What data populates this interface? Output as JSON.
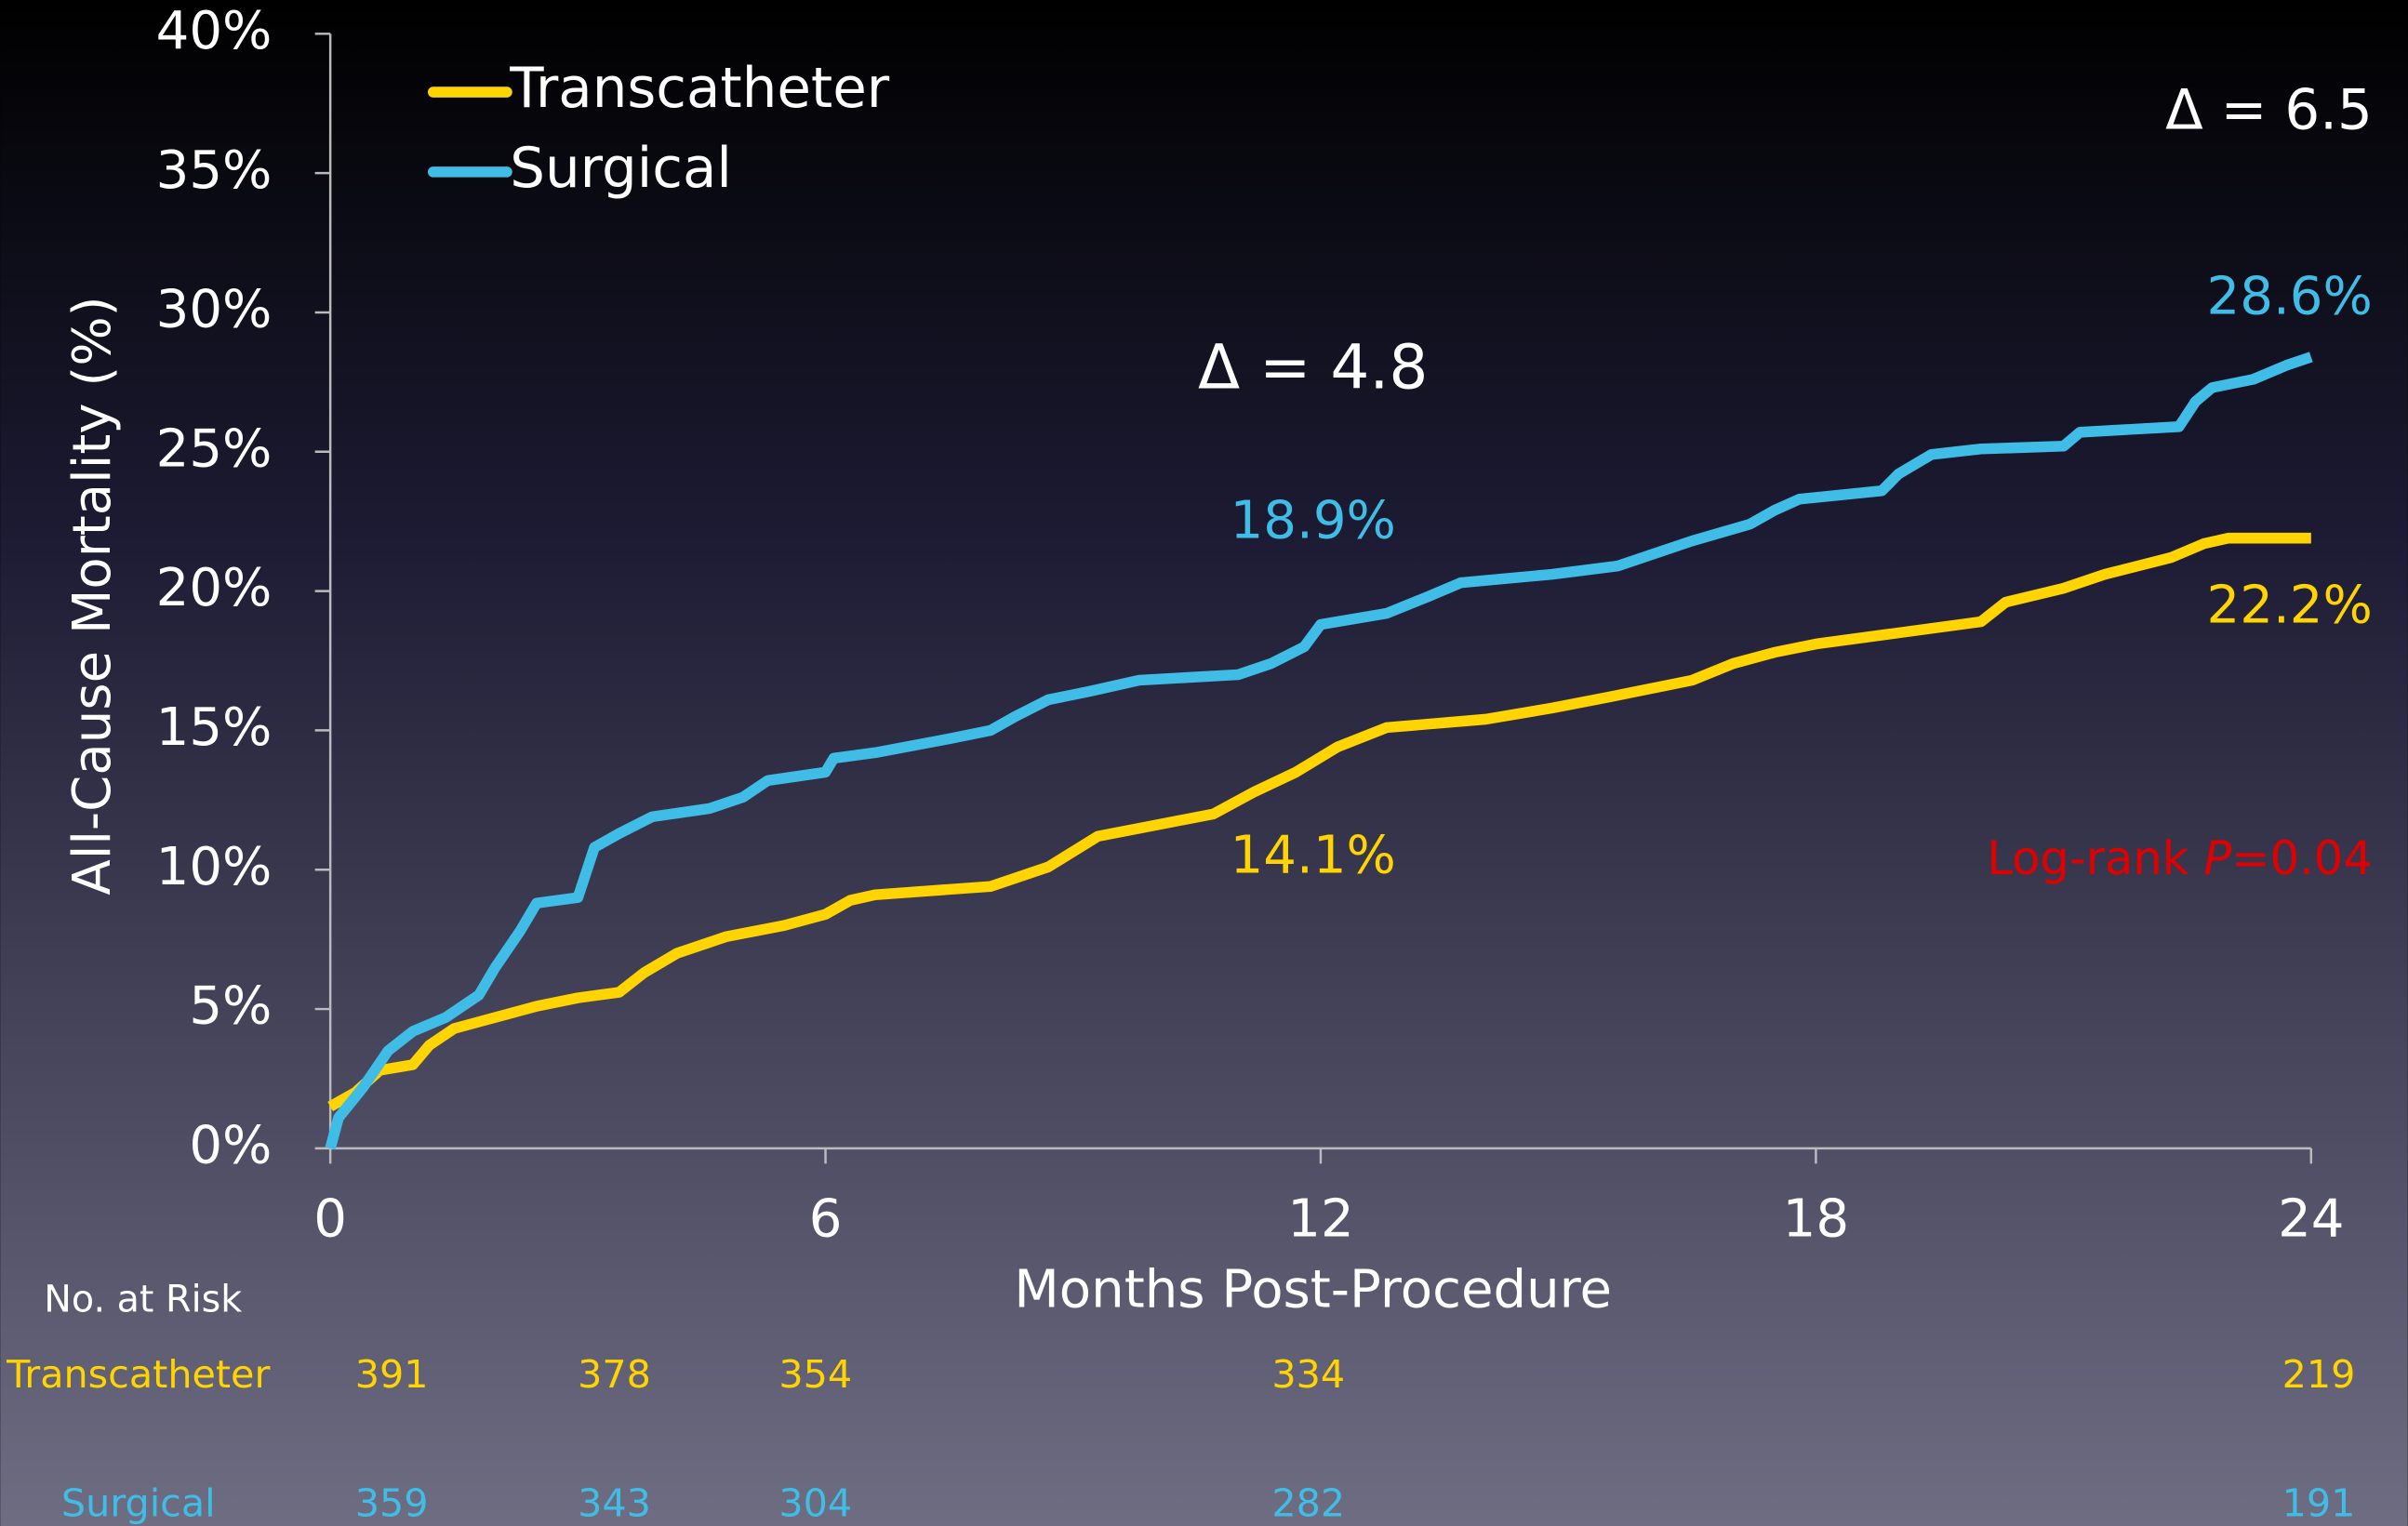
{
  "chart_data": {
    "type": "line",
    "xlabel": "Months Post-Procedure",
    "ylabel": "All-Cause Mortality (%)",
    "xlim": [
      0,
      24
    ],
    "xticks": [
      0,
      6,
      12,
      18,
      24
    ],
    "ylim": [
      0,
      40
    ],
    "yticks": [
      {
        "value": 0,
        "label": "0%"
      },
      {
        "value": 5,
        "label": "5%"
      },
      {
        "value": 10,
        "label": "10%"
      },
      {
        "value": 15,
        "label": "15%"
      },
      {
        "value": 20,
        "label": "20%"
      },
      {
        "value": 25,
        "label": "25%"
      },
      {
        "value": 30,
        "label": "30%"
      },
      {
        "value": 35,
        "label": "35%"
      },
      {
        "value": 40,
        "label": "40%"
      }
    ],
    "legend": "upper left",
    "series": [
      {
        "name": "Transcatheter",
        "color": "#ffd400",
        "x": [
          0,
          0.3,
          0.6,
          1,
          1.2,
          1.5,
          2,
          2.5,
          3,
          3.5,
          3.8,
          4.2,
          4.8,
          5.5,
          6,
          6.3,
          6.6,
          8,
          8.7,
          9.3,
          10,
          10.7,
          11.2,
          11.7,
          12.2,
          12.8,
          14,
          14.8,
          15.5,
          16.5,
          17,
          17.5,
          18,
          19,
          20,
          20.3,
          21,
          21.5,
          22.3,
          22.7,
          23,
          24
        ],
        "values": [
          1.5,
          2,
          2.8,
          3,
          3.7,
          4.3,
          4.7,
          5.1,
          5.4,
          5.6,
          6.3,
          7,
          7.6,
          8,
          8.4,
          8.9,
          9.1,
          9.4,
          10.1,
          11.2,
          11.6,
          12,
          12.8,
          13.5,
          14.4,
          15.1,
          15.4,
          15.8,
          16.2,
          16.8,
          17.4,
          17.8,
          18.1,
          18.5,
          18.9,
          19.6,
          20.1,
          20.6,
          21.2,
          21.7,
          21.9,
          21.9
        ]
      },
      {
        "name": "Surgical",
        "color": "#3fbde6",
        "x": [
          0,
          0.1,
          0.4,
          0.7,
          1,
          1.4,
          1.8,
          2,
          2.3,
          2.5,
          3,
          3.2,
          3.5,
          3.9,
          4.6,
          5,
          5.3,
          6,
          6.1,
          6.6,
          7.5,
          8,
          8.3,
          8.7,
          9.2,
          9.8,
          11,
          11.4,
          11.8,
          12,
          12.8,
          13.3,
          13.7,
          14.8,
          15.6,
          16.1,
          16.5,
          17.2,
          17.5,
          17.8,
          18.8,
          19,
          19.4,
          20,
          21,
          21.2,
          22.4,
          22.6,
          22.8,
          23.3,
          23.7,
          24
        ],
        "values": [
          0,
          1.1,
          2.2,
          3.5,
          4.2,
          4.7,
          5.5,
          6.5,
          7.8,
          8.8,
          9,
          10.8,
          11.3,
          11.9,
          12.2,
          12.6,
          13.2,
          13.5,
          14,
          14.2,
          14.7,
          15,
          15.5,
          16.1,
          16.4,
          16.8,
          17,
          17.4,
          18,
          18.8,
          19.2,
          19.8,
          20.3,
          20.6,
          20.9,
          21.4,
          21.8,
          22.4,
          22.9,
          23.3,
          23.6,
          24.2,
          24.9,
          25.1,
          25.2,
          25.7,
          25.9,
          26.8,
          27.3,
          27.6,
          28.1,
          28.4
        ]
      }
    ],
    "annotations": [
      "Δ = 4.8",
      "Δ = 6.5",
      "18.9%",
      "14.1%",
      "28.6%",
      "22.2%"
    ],
    "pvalue": [
      "Log-rank ",
      "P",
      "=0.04"
    ],
    "risk_table": {
      "title": "No. at Risk",
      "rows": [
        {
          "name": "Transcatheter",
          "values": [
            391,
            378,
            354,
            334,
            219
          ]
        },
        {
          "name": "Surgical",
          "values": [
            359,
            343,
            304,
            282,
            191
          ]
        }
      ]
    }
  }
}
